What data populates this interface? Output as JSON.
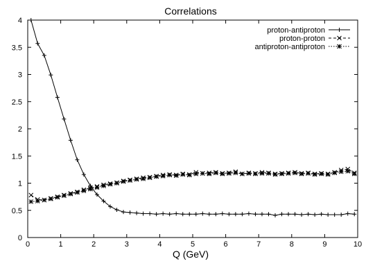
{
  "chart_data": {
    "type": "line",
    "title": "Correlations",
    "xlabel": "Q (GeV)",
    "ylabel": "",
    "xlim": [
      0,
      10
    ],
    "ylim": [
      0,
      4
    ],
    "x_ticks": [
      "0",
      "1",
      "2",
      "3",
      "4",
      "5",
      "6",
      "7",
      "8",
      "9",
      "10"
    ],
    "y_ticks": [
      "0",
      "0.5",
      "1",
      "1.5",
      "2",
      "2.5",
      "3",
      "3.5",
      "4"
    ],
    "grid": false,
    "legend_position": "top-right",
    "series": [
      {
        "name": "proton-antiproton",
        "marker": "plus",
        "line": "solid",
        "x": [
          0.1,
          0.3,
          0.5,
          0.7,
          0.9,
          1.1,
          1.3,
          1.5,
          1.7,
          1.9,
          2.1,
          2.3,
          2.5,
          2.7,
          2.9,
          3.1,
          3.3,
          3.5,
          3.7,
          3.9,
          4.1,
          4.3,
          4.5,
          4.7,
          4.9,
          5.1,
          5.3,
          5.5,
          5.7,
          5.9,
          6.1,
          6.3,
          6.5,
          6.7,
          6.9,
          7.1,
          7.3,
          7.5,
          7.7,
          7.9,
          8.1,
          8.3,
          8.5,
          8.7,
          8.9,
          9.1,
          9.3,
          9.5,
          9.7,
          9.9
        ],
        "y": [
          4.0,
          3.57,
          3.35,
          2.99,
          2.58,
          2.18,
          1.79,
          1.43,
          1.16,
          0.95,
          0.79,
          0.67,
          0.57,
          0.51,
          0.47,
          0.46,
          0.45,
          0.44,
          0.44,
          0.43,
          0.44,
          0.43,
          0.44,
          0.43,
          0.43,
          0.43,
          0.44,
          0.43,
          0.43,
          0.44,
          0.43,
          0.43,
          0.43,
          0.44,
          0.43,
          0.43,
          0.43,
          0.41,
          0.43,
          0.43,
          0.43,
          0.42,
          0.43,
          0.42,
          0.43,
          0.42,
          0.42,
          0.42,
          0.44,
          0.43
        ]
      },
      {
        "name": "proton-proton",
        "marker": "cross",
        "line": "dashed",
        "x": [
          0.1,
          0.3,
          0.5,
          0.7,
          0.9,
          1.1,
          1.3,
          1.5,
          1.7,
          1.9,
          2.1,
          2.3,
          2.5,
          2.7,
          2.9,
          3.1,
          3.3,
          3.5,
          3.7,
          3.9,
          4.1,
          4.3,
          4.5,
          4.7,
          4.9,
          5.1,
          5.3,
          5.5,
          5.7,
          5.9,
          6.1,
          6.3,
          6.5,
          6.7,
          6.9,
          7.1,
          7.3,
          7.5,
          7.7,
          7.9,
          8.1,
          8.3,
          8.5,
          8.7,
          8.9,
          9.1,
          9.3,
          9.5,
          9.7,
          9.9
        ],
        "y": [
          0.78,
          0.7,
          0.69,
          0.72,
          0.75,
          0.78,
          0.81,
          0.84,
          0.88,
          0.91,
          0.94,
          0.97,
          0.99,
          1.01,
          1.04,
          1.06,
          1.08,
          1.1,
          1.11,
          1.13,
          1.15,
          1.16,
          1.15,
          1.17,
          1.16,
          1.2,
          1.18,
          1.19,
          1.2,
          1.18,
          1.19,
          1.21,
          1.17,
          1.19,
          1.18,
          1.2,
          1.19,
          1.17,
          1.18,
          1.19,
          1.2,
          1.18,
          1.19,
          1.17,
          1.18,
          1.17,
          1.2,
          1.24,
          1.26,
          1.19
        ]
      },
      {
        "name": "antiproton-antiproton",
        "marker": "star",
        "line": "dotted",
        "x": [
          0.1,
          0.3,
          0.5,
          0.7,
          0.9,
          1.1,
          1.3,
          1.5,
          1.7,
          1.9,
          2.1,
          2.3,
          2.5,
          2.7,
          2.9,
          3.1,
          3.3,
          3.5,
          3.7,
          3.9,
          4.1,
          4.3,
          4.5,
          4.7,
          4.9,
          5.1,
          5.3,
          5.5,
          5.7,
          5.9,
          6.1,
          6.3,
          6.5,
          6.7,
          6.9,
          7.1,
          7.3,
          7.5,
          7.7,
          7.9,
          8.1,
          8.3,
          8.5,
          8.7,
          8.9,
          9.1,
          9.3,
          9.5,
          9.7,
          9.9
        ],
        "y": [
          0.66,
          0.67,
          0.69,
          0.71,
          0.74,
          0.77,
          0.8,
          0.83,
          0.86,
          0.89,
          0.92,
          0.95,
          0.98,
          1.0,
          1.03,
          1.05,
          1.07,
          1.08,
          1.1,
          1.12,
          1.13,
          1.15,
          1.14,
          1.16,
          1.15,
          1.17,
          1.18,
          1.17,
          1.19,
          1.17,
          1.18,
          1.19,
          1.17,
          1.18,
          1.17,
          1.18,
          1.18,
          1.16,
          1.17,
          1.18,
          1.19,
          1.17,
          1.18,
          1.16,
          1.17,
          1.16,
          1.19,
          1.21,
          1.22,
          1.17
        ]
      }
    ]
  }
}
